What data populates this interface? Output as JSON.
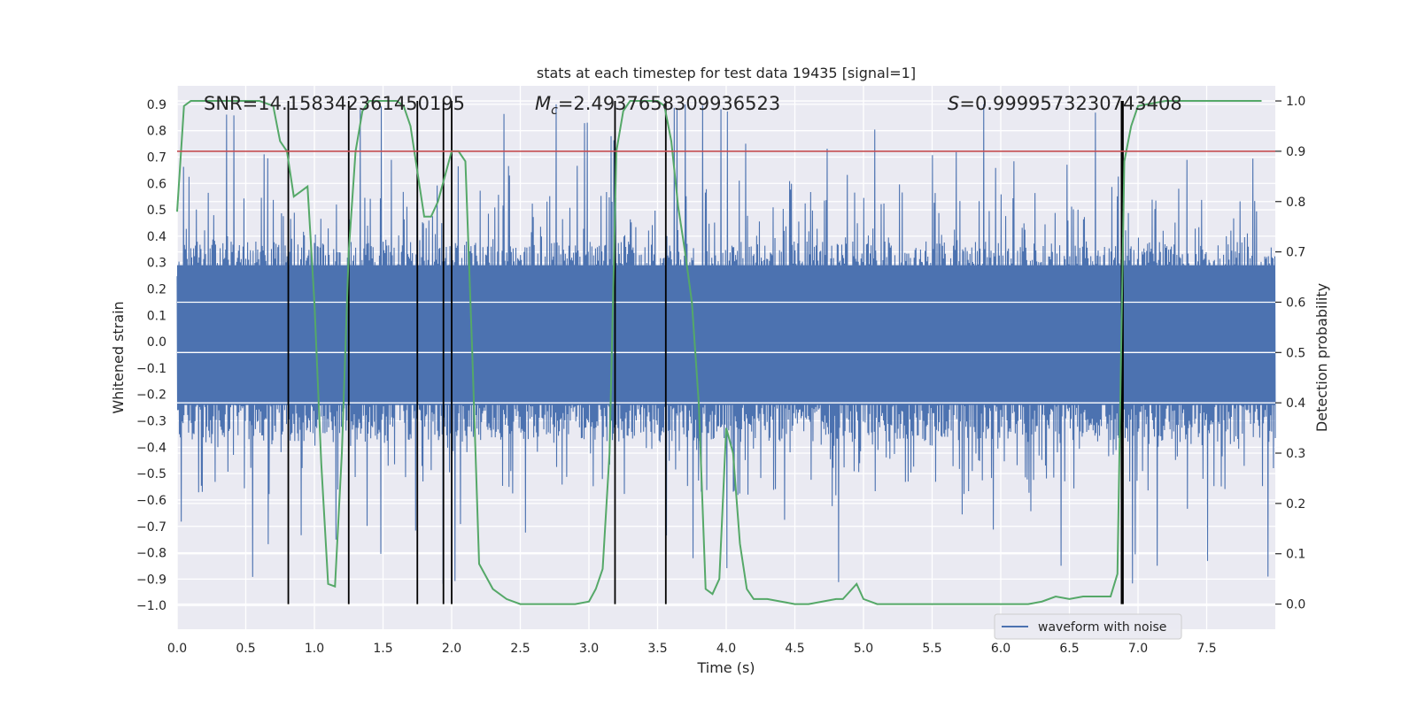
{
  "chart_data": {
    "type": "line",
    "title": "stats at each timestep for test data 19435 [signal=1]",
    "xlabel": "Time (s)",
    "ylabel": "Whitened strain",
    "y2label": "Detection probability",
    "xlim": [
      0.0,
      8.0
    ],
    "ylim": [
      -1.09,
      0.97
    ],
    "y2lim": [
      -0.05,
      1.03
    ],
    "x_ticks": [
      0.0,
      0.5,
      1.0,
      1.5,
      2.0,
      2.5,
      3.0,
      3.5,
      4.0,
      4.5,
      5.0,
      5.5,
      6.0,
      6.5,
      7.0,
      7.5
    ],
    "x_tick_labels": [
      "0.0",
      "0.5",
      "1.0",
      "1.5",
      "2.0",
      "2.5",
      "3.0",
      "3.5",
      "4.0",
      "4.5",
      "5.0",
      "5.5",
      "6.0",
      "6.5",
      "7.0",
      "7.5"
    ],
    "y_ticks": [
      0.9,
      0.8,
      0.7,
      0.6,
      0.5,
      0.4,
      0.3,
      0.2,
      0.1,
      0.0,
      -0.1,
      -0.2,
      -0.3,
      -0.4,
      -0.5,
      -0.6,
      -0.7,
      -0.8,
      -0.9,
      -1.0
    ],
    "y_tick_labels": [
      "0.9",
      "0.8",
      "0.7",
      "0.6",
      "0.5",
      "0.4",
      "0.3",
      "0.2",
      "0.1",
      "0.0",
      "−0.1",
      "−0.2",
      "−0.3",
      "−0.4",
      "−0.5",
      "−0.6",
      "−0.7",
      "−0.8",
      "−0.9",
      "−1.0"
    ],
    "y2_ticks": [
      1.0,
      0.9,
      0.8,
      0.7,
      0.6,
      0.5,
      0.4,
      0.3,
      0.2,
      0.1,
      0.0
    ],
    "y2_tick_labels": [
      "1.0",
      "0.9",
      "0.8",
      "0.7",
      "0.6",
      "0.5",
      "0.4",
      "0.3",
      "0.2",
      "0.1",
      "0.0"
    ],
    "annotations": {
      "snr": "SNR=14.158342361450195",
      "mc_symbol": "M",
      "mc_subscript": "c",
      "mc_value": "=2.4937658309936523",
      "s_symbol": "S",
      "s_value": "=0.9999573230743408"
    },
    "series": [
      {
        "name": "waveform with noise",
        "axis": "left",
        "color": "#4c72b0",
        "description": "dense noisy whitened strain, band roughly -0.4 to 0.4 with spikes to about +-0.9"
      },
      {
        "name": "detection probability",
        "axis": "right",
        "color": "#55a868",
        "x": [
          0.0,
          0.05,
          0.1,
          0.15,
          0.2,
          0.3,
          0.4,
          0.5,
          0.6,
          0.7,
          0.75,
          0.8,
          0.85,
          0.9,
          0.95,
          1.0,
          1.05,
          1.1,
          1.15,
          1.2,
          1.25,
          1.3,
          1.35,
          1.4,
          1.5,
          1.6,
          1.65,
          1.7,
          1.75,
          1.8,
          1.85,
          1.9,
          1.95,
          2.0,
          2.05,
          2.1,
          2.15,
          2.2,
          2.3,
          2.4,
          2.5,
          2.7,
          2.9,
          3.0,
          3.05,
          3.1,
          3.15,
          3.2,
          3.25,
          3.3,
          3.4,
          3.5,
          3.55,
          3.6,
          3.65,
          3.7,
          3.75,
          3.8,
          3.85,
          3.9,
          3.95,
          4.0,
          4.05,
          4.1,
          4.15,
          4.2,
          4.3,
          4.4,
          4.5,
          4.6,
          4.7,
          4.8,
          4.85,
          4.9,
          4.95,
          5.0,
          5.1,
          5.2,
          5.5,
          5.8,
          6.0,
          6.1,
          6.2,
          6.3,
          6.4,
          6.5,
          6.6,
          6.7,
          6.8,
          6.85,
          6.9,
          6.95,
          7.0,
          7.2,
          7.5,
          7.7,
          7.9
        ],
        "values": [
          0.78,
          0.99,
          1.0,
          1.0,
          1.0,
          1.0,
          1.0,
          1.0,
          1.0,
          0.99,
          0.92,
          0.9,
          0.81,
          0.82,
          0.83,
          0.6,
          0.28,
          0.04,
          0.035,
          0.3,
          0.7,
          0.9,
          0.98,
          1.0,
          1.0,
          1.0,
          0.99,
          0.95,
          0.86,
          0.77,
          0.77,
          0.8,
          0.85,
          0.9,
          0.9,
          0.88,
          0.5,
          0.08,
          0.03,
          0.01,
          0.0,
          0.0,
          0.0,
          0.005,
          0.03,
          0.07,
          0.3,
          0.9,
          0.98,
          1.0,
          1.0,
          1.0,
          0.99,
          0.92,
          0.79,
          0.7,
          0.6,
          0.4,
          0.03,
          0.02,
          0.05,
          0.35,
          0.3,
          0.12,
          0.03,
          0.01,
          0.01,
          0.005,
          0.0,
          0.0,
          0.005,
          0.01,
          0.01,
          0.025,
          0.04,
          0.01,
          0.0,
          0.0,
          0.0,
          0.0,
          0.0,
          0.0,
          0.0,
          0.005,
          0.015,
          0.01,
          0.015,
          0.015,
          0.015,
          0.06,
          0.88,
          0.95,
          0.99,
          1.0,
          1.0,
          1.0,
          1.0
        ]
      }
    ],
    "threshold_line": {
      "axis": "right",
      "value": 0.9,
      "color": "#c44e52"
    },
    "vertical_markers": [
      0.81,
      1.25,
      1.75,
      1.94,
      2.0,
      3.19,
      3.56,
      6.88,
      6.89
    ],
    "legend": {
      "position": "lower-right",
      "entries": [
        "waveform with noise"
      ]
    },
    "grid": true
  }
}
